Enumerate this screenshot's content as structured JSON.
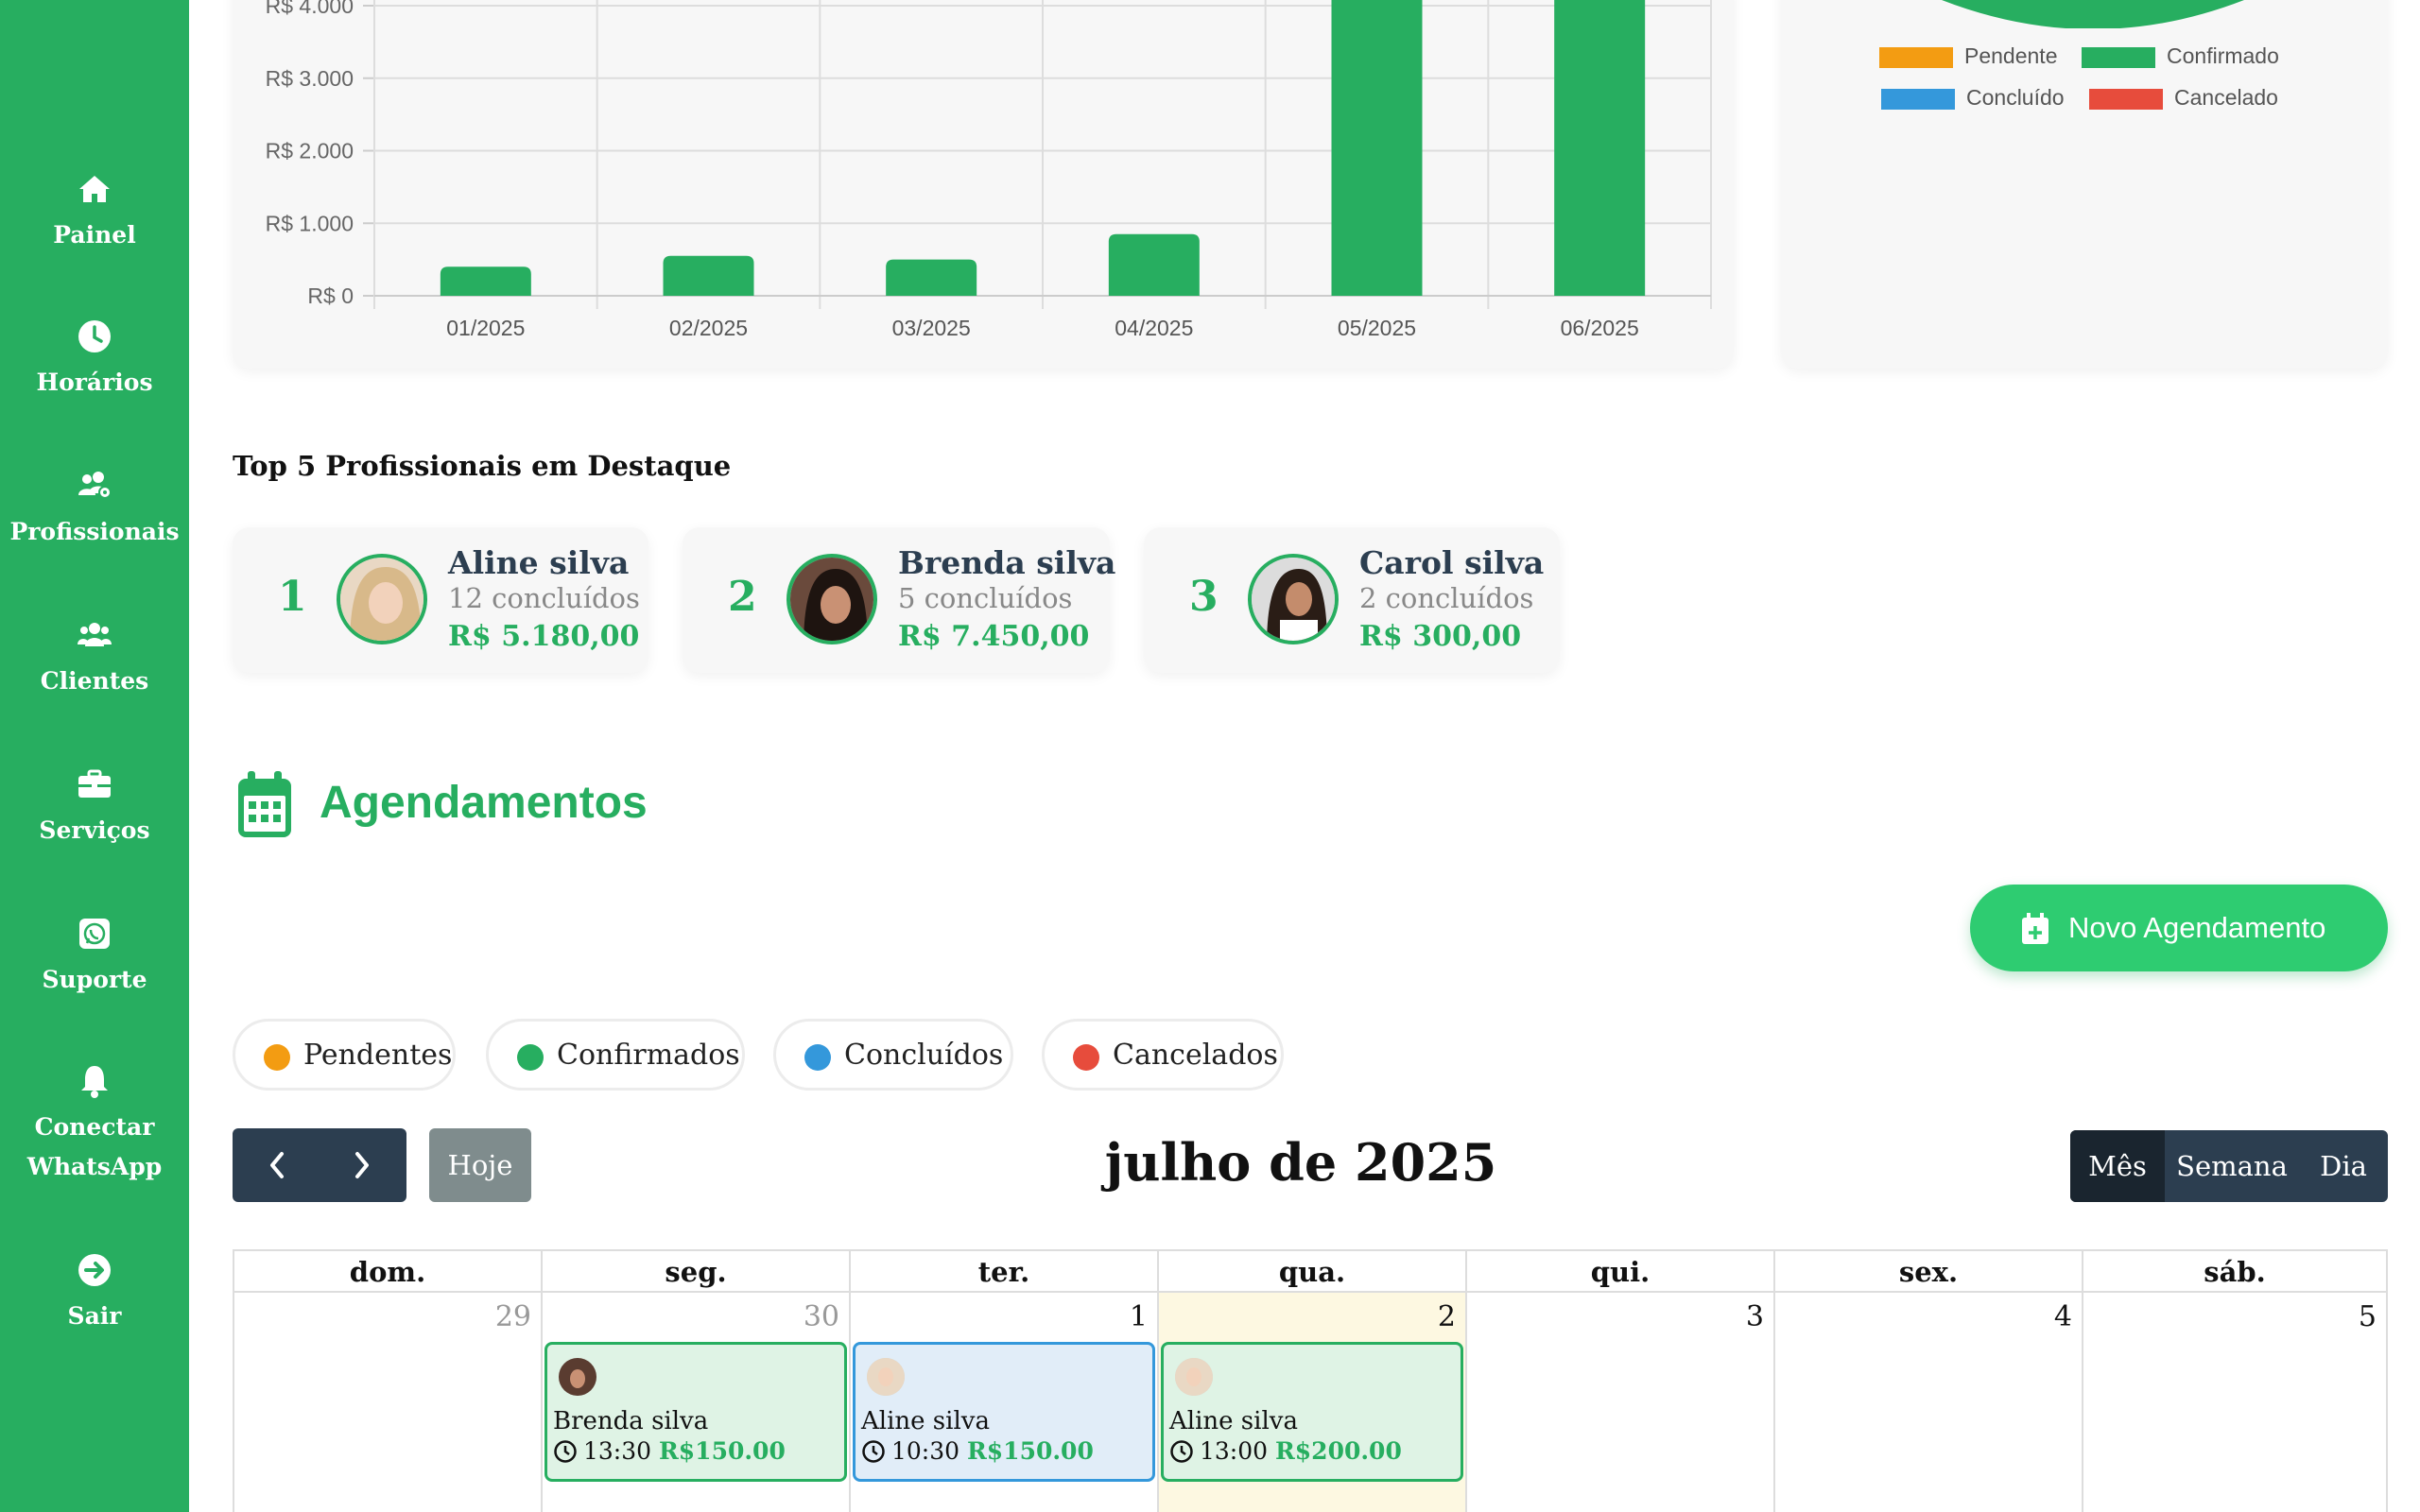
{
  "sidebar": {
    "items": [
      {
        "label": "Painel",
        "icon": "home-icon"
      },
      {
        "label": "Horários",
        "icon": "clock-icon"
      },
      {
        "label": "Profissionais",
        "icon": "users-cog-icon"
      },
      {
        "label": "Clientes",
        "icon": "users-icon"
      },
      {
        "label": "Serviços",
        "icon": "briefcase-icon"
      },
      {
        "label": "Suporte",
        "icon": "whatsapp-icon"
      },
      {
        "label": "Conectar WhatsApp",
        "label_line1": "Conectar",
        "label_line2": "WhatsApp",
        "icon": "bell-icon"
      },
      {
        "label": "Sair",
        "icon": "logout-icon"
      }
    ]
  },
  "chart_data": {
    "type": "bar",
    "categories": [
      "01/2025",
      "02/2025",
      "03/2025",
      "04/2025",
      "05/2025",
      "06/2025"
    ],
    "values": [
      400,
      550,
      500,
      850,
      4400,
      4400
    ],
    "ytick_labels": [
      "R$ 0",
      "R$ 1.000",
      "R$ 2.000",
      "R$ 3.000",
      "R$ 4.000"
    ],
    "yticks": [
      0,
      1000,
      2000,
      3000,
      4000
    ],
    "ylim": [
      0,
      4000
    ],
    "color": "#27ae60",
    "grid": true
  },
  "status_legend": [
    {
      "label": "Pendente",
      "color": "#f39c12"
    },
    {
      "label": "Confirmado",
      "color": "#27ae60"
    },
    {
      "label": "Concluído",
      "color": "#3498db"
    },
    {
      "label": "Cancelado",
      "color": "#e74c3c"
    }
  ],
  "top_pros": {
    "title": "Top 5 Profissionais em Destaque",
    "items": [
      {
        "rank": "1",
        "name": "Aline silva",
        "count": "12 concluídos",
        "value": "R$ 5.180,00"
      },
      {
        "rank": "2",
        "name": "Brenda silva",
        "count": "5 concluídos",
        "value": "R$ 7.450,00"
      },
      {
        "rank": "3",
        "name": "Carol silva",
        "count": "2 concluídos",
        "value": "R$ 300,00"
      }
    ]
  },
  "agenda": {
    "title": "Agendamentos",
    "new_button": "Novo Agendamento",
    "filters": [
      {
        "label": "Pendentes",
        "color": "#f39c12"
      },
      {
        "label": "Confirmados",
        "color": "#27ae60"
      },
      {
        "label": "Concluídos",
        "color": "#3498db"
      },
      {
        "label": "Cancelados",
        "color": "#e74c3c"
      }
    ],
    "today_label": "Hoje",
    "month_title": "julho de 2025",
    "views": [
      "Mês",
      "Semana",
      "Dia"
    ],
    "active_view": "Mês",
    "weekdays": [
      "dom.",
      "seg.",
      "ter.",
      "qua.",
      "qui.",
      "sex.",
      "sáb."
    ],
    "days": [
      "29",
      "30",
      "1",
      "2",
      "3",
      "4",
      "5"
    ],
    "events": [
      {
        "name": "Brenda silva",
        "time": "13:30",
        "price": "R$150.00",
        "status": "confirmed"
      },
      {
        "name": "Aline silva",
        "time": "10:30",
        "price": "R$150.00",
        "status": "completed"
      },
      {
        "name": "Aline silva",
        "time": "13:00",
        "price": "R$200.00",
        "status": "confirmed"
      }
    ]
  }
}
